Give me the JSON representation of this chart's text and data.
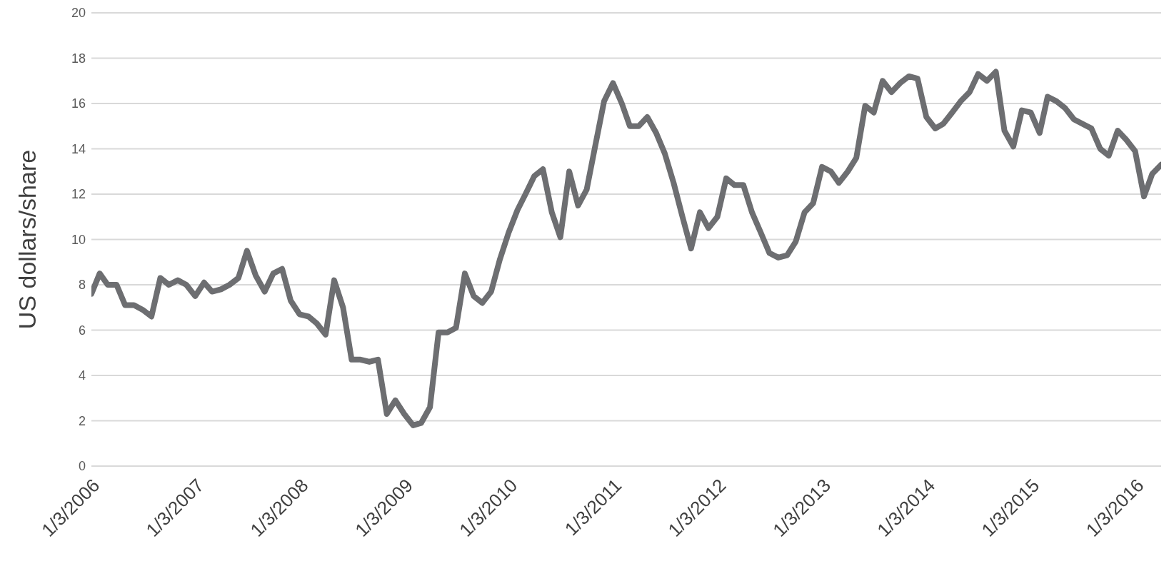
{
  "chart_data": {
    "type": "line",
    "ylabel": "US dollars/share",
    "grid": "y",
    "marker": "none",
    "line_style": "solid",
    "xlim": [
      "2006-01-03",
      "2016-04-01"
    ],
    "xticks": [
      {
        "value": "2006-01-03",
        "label": "1/3/2006"
      },
      {
        "value": "2007-01-03",
        "label": "1/3/2007"
      },
      {
        "value": "2008-01-03",
        "label": "1/3/2008"
      },
      {
        "value": "2009-01-03",
        "label": "1/3/2009"
      },
      {
        "value": "2010-01-03",
        "label": "1/3/2010"
      },
      {
        "value": "2011-01-03",
        "label": "1/3/2011"
      },
      {
        "value": "2012-01-03",
        "label": "1/3/2012"
      },
      {
        "value": "2013-01-03",
        "label": "1/3/2013"
      },
      {
        "value": "2014-01-03",
        "label": "1/3/2014"
      },
      {
        "value": "2015-01-03",
        "label": "1/3/2015"
      },
      {
        "value": "2016-01-03",
        "label": "1/3/2016"
      }
    ],
    "ylim": [
      0,
      20
    ],
    "yticks": [
      0,
      2,
      4,
      6,
      8,
      10,
      12,
      14,
      16,
      18,
      20
    ],
    "x": [
      "2006-01-03",
      "2006-02-01",
      "2006-03-01",
      "2006-04-01",
      "2006-05-01",
      "2006-06-01",
      "2006-07-01",
      "2006-08-01",
      "2006-09-01",
      "2006-10-01",
      "2006-11-01",
      "2006-12-01",
      "2007-01-01",
      "2007-02-01",
      "2007-03-01",
      "2007-04-01",
      "2007-05-01",
      "2007-06-01",
      "2007-07-01",
      "2007-08-01",
      "2007-09-01",
      "2007-10-01",
      "2007-11-01",
      "2007-12-01",
      "2008-01-01",
      "2008-02-01",
      "2008-03-01",
      "2008-04-01",
      "2008-05-01",
      "2008-06-01",
      "2008-07-01",
      "2008-08-01",
      "2008-09-01",
      "2008-10-01",
      "2008-11-01",
      "2008-12-01",
      "2009-01-01",
      "2009-02-01",
      "2009-03-01",
      "2009-04-01",
      "2009-05-01",
      "2009-06-01",
      "2009-07-01",
      "2009-08-01",
      "2009-09-01",
      "2009-10-01",
      "2009-11-01",
      "2009-12-01",
      "2010-01-01",
      "2010-02-01",
      "2010-03-01",
      "2010-04-01",
      "2010-05-01",
      "2010-06-01",
      "2010-07-01",
      "2010-08-01",
      "2010-09-01",
      "2010-10-01",
      "2010-11-01",
      "2010-12-01",
      "2011-01-01",
      "2011-02-01",
      "2011-03-01",
      "2011-04-01",
      "2011-05-01",
      "2011-06-01",
      "2011-07-01",
      "2011-08-01",
      "2011-09-01",
      "2011-10-01",
      "2011-11-01",
      "2011-12-01",
      "2012-01-01",
      "2012-02-01",
      "2012-03-01",
      "2012-04-01",
      "2012-05-01",
      "2012-06-01",
      "2012-07-01",
      "2012-08-01",
      "2012-09-01",
      "2012-10-01",
      "2012-11-01",
      "2012-12-01",
      "2013-01-01",
      "2013-02-01",
      "2013-03-01",
      "2013-04-01",
      "2013-05-01",
      "2013-06-01",
      "2013-07-01",
      "2013-08-01",
      "2013-09-01",
      "2013-10-01",
      "2013-11-01",
      "2013-12-01",
      "2014-01-01",
      "2014-02-01",
      "2014-03-01",
      "2014-04-01",
      "2014-05-01",
      "2014-06-01",
      "2014-07-01",
      "2014-08-01",
      "2014-09-01",
      "2014-10-01",
      "2014-11-01",
      "2014-12-01",
      "2015-01-01",
      "2015-02-01",
      "2015-03-01",
      "2015-04-01",
      "2015-05-01",
      "2015-06-01",
      "2015-07-01",
      "2015-08-01",
      "2015-09-01",
      "2015-10-01",
      "2015-11-01",
      "2015-12-01",
      "2016-01-01",
      "2016-02-01",
      "2016-03-01",
      "2016-04-01"
    ],
    "series": [
      {
        "color": "#6d6e71",
        "values": [
          7.6,
          8.5,
          8.0,
          8.0,
          7.1,
          7.1,
          6.9,
          6.6,
          8.3,
          8.0,
          8.2,
          8.0,
          7.5,
          8.1,
          7.7,
          7.8,
          8.0,
          8.3,
          9.5,
          8.4,
          7.7,
          8.5,
          8.7,
          7.3,
          6.7,
          6.6,
          6.3,
          5.8,
          8.2,
          7.0,
          4.7,
          4.7,
          4.6,
          4.7,
          2.3,
          2.9,
          2.3,
          1.8,
          1.9,
          2.6,
          5.9,
          5.9,
          6.1,
          8.5,
          7.5,
          7.2,
          7.7,
          9.1,
          10.3,
          11.3,
          12.0,
          12.8,
          13.1,
          11.2,
          10.1,
          13.0,
          11.5,
          12.2,
          14.2,
          16.1,
          16.9,
          16.0,
          15.0,
          15.0,
          15.4,
          14.7,
          13.8,
          12.5,
          11.0,
          9.6,
          11.2,
          10.5,
          11.0,
          12.7,
          12.4,
          12.4,
          11.2,
          10.3,
          9.4,
          9.2,
          9.3,
          9.9,
          11.2,
          11.6,
          13.2,
          13.0,
          12.5,
          13.0,
          13.6,
          15.9,
          15.6,
          17.0,
          16.5,
          16.9,
          17.2,
          17.1,
          15.4,
          14.9,
          15.1,
          15.6,
          16.1,
          16.5,
          17.3,
          17.0,
          17.4,
          14.8,
          14.1,
          15.7,
          15.6,
          14.7,
          16.3,
          16.1,
          15.8,
          15.3,
          15.1,
          14.9,
          14.0,
          13.7,
          14.8,
          14.4,
          13.9,
          11.9,
          12.9,
          13.3
        ]
      }
    ]
  }
}
